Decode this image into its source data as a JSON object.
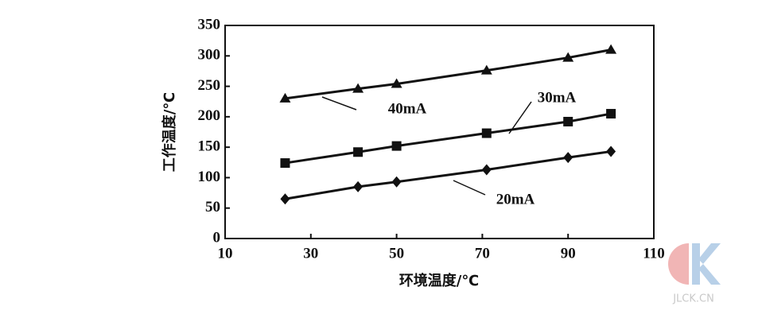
{
  "chart_data": {
    "type": "line",
    "xlabel": "环境温度/℃",
    "ylabel": "工作温度/℃",
    "x": [
      24,
      41,
      50,
      71,
      90,
      100
    ],
    "series": [
      {
        "name": "40mA",
        "color": "#111111",
        "marker": "triangle",
        "values": [
          230,
          246,
          254,
          276,
          297,
          310
        ]
      },
      {
        "name": "30mA",
        "color": "#111111",
        "marker": "square",
        "values": [
          124,
          142,
          152,
          173,
          192,
          205
        ]
      },
      {
        "name": "20mA",
        "color": "#111111",
        "marker": "diamond",
        "values": [
          65,
          85,
          93,
          113,
          133,
          143
        ]
      }
    ],
    "xlim": [
      10,
      110
    ],
    "xticks": [
      10,
      30,
      50,
      70,
      90,
      110
    ],
    "ylim": [
      0,
      350
    ],
    "yticks": [
      0,
      50,
      100,
      150,
      200,
      250,
      300,
      350
    ],
    "watermark": "JLCK.CN"
  }
}
